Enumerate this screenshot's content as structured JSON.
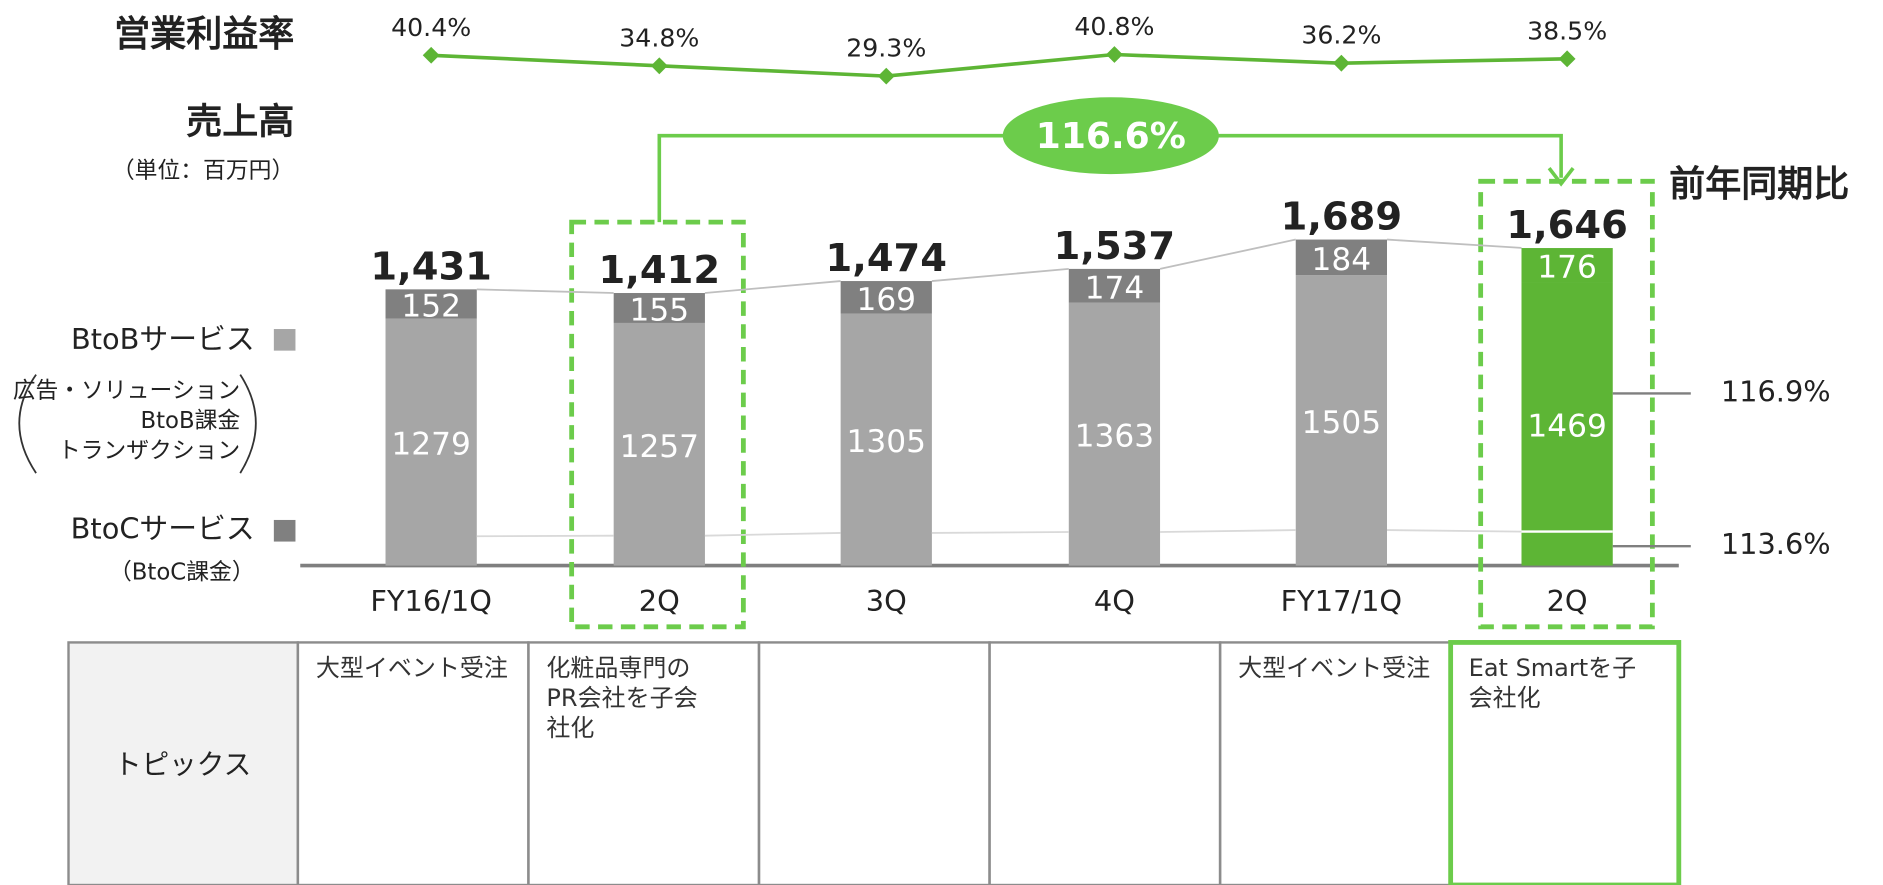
{
  "chart_data": {
    "type": "stacked_bar",
    "title": "売上高",
    "subtitle": "（単位：百万円）",
    "categories": [
      "FY16/1Q",
      "2Q",
      "3Q",
      "4Q",
      "FY17/1Q",
      "2Q"
    ],
    "ylim": [
      0,
      2930
    ],
    "series": [
      {
        "name": "BtoBサービス",
        "sub_labels": [
          "広告・ソリューション",
          "BtoB課金",
          "トランザクション"
        ],
        "color": "#a6a6a6",
        "colors": [
          "#a6a6a6",
          "#a6a6a6",
          "#a6a6a6",
          "#a6a6a6",
          "#a6a6a6",
          "#5db535"
        ],
        "values": [
          1279,
          1257,
          1305,
          1363,
          1505,
          1469
        ],
        "yoy": 116.9,
        "yoy_label": "116.9%"
      },
      {
        "name": "BtoCサービス",
        "sub_labels": [
          "（BtoC課金）"
        ],
        "color": "#808080",
        "colors": [
          "#808080",
          "#808080",
          "#808080",
          "#808080",
          "#808080",
          "#5db535"
        ],
        "values": [
          152,
          155,
          169,
          174,
          184,
          176
        ],
        "yoy": 113.6,
        "yoy_label": "113.6%"
      }
    ],
    "totals": [
      1431,
      1412,
      1474,
      1537,
      1689,
      1646
    ],
    "total_labels": [
      "1,431",
      "1,412",
      "1,474",
      "1,537",
      "1,689",
      "1,646"
    ],
    "growth": {
      "value": 116.6,
      "label": "116.6%",
      "caption": "前年同期比",
      "color": "#6ccc4b"
    },
    "margin": {
      "title": "営業利益率",
      "color": "#5db535",
      "y2lim": [
        15.5,
        69.8
      ],
      "values": [
        40.4,
        34.8,
        29.3,
        40.8,
        36.2,
        38.5
      ],
      "value_labels": [
        "40.4%",
        "34.8%",
        "29.3%",
        "40.8%",
        "36.2%",
        "38.5%"
      ]
    }
  },
  "table": {
    "header": "トピックス",
    "cells": [
      [
        "大型イベント受注"
      ],
      [
        "化粧品専門の",
        "PR会社を子会",
        "社化"
      ],
      [],
      [],
      [
        "大型イベント受注"
      ],
      [
        "Eat Smartを子",
        "会社化"
      ]
    ]
  }
}
